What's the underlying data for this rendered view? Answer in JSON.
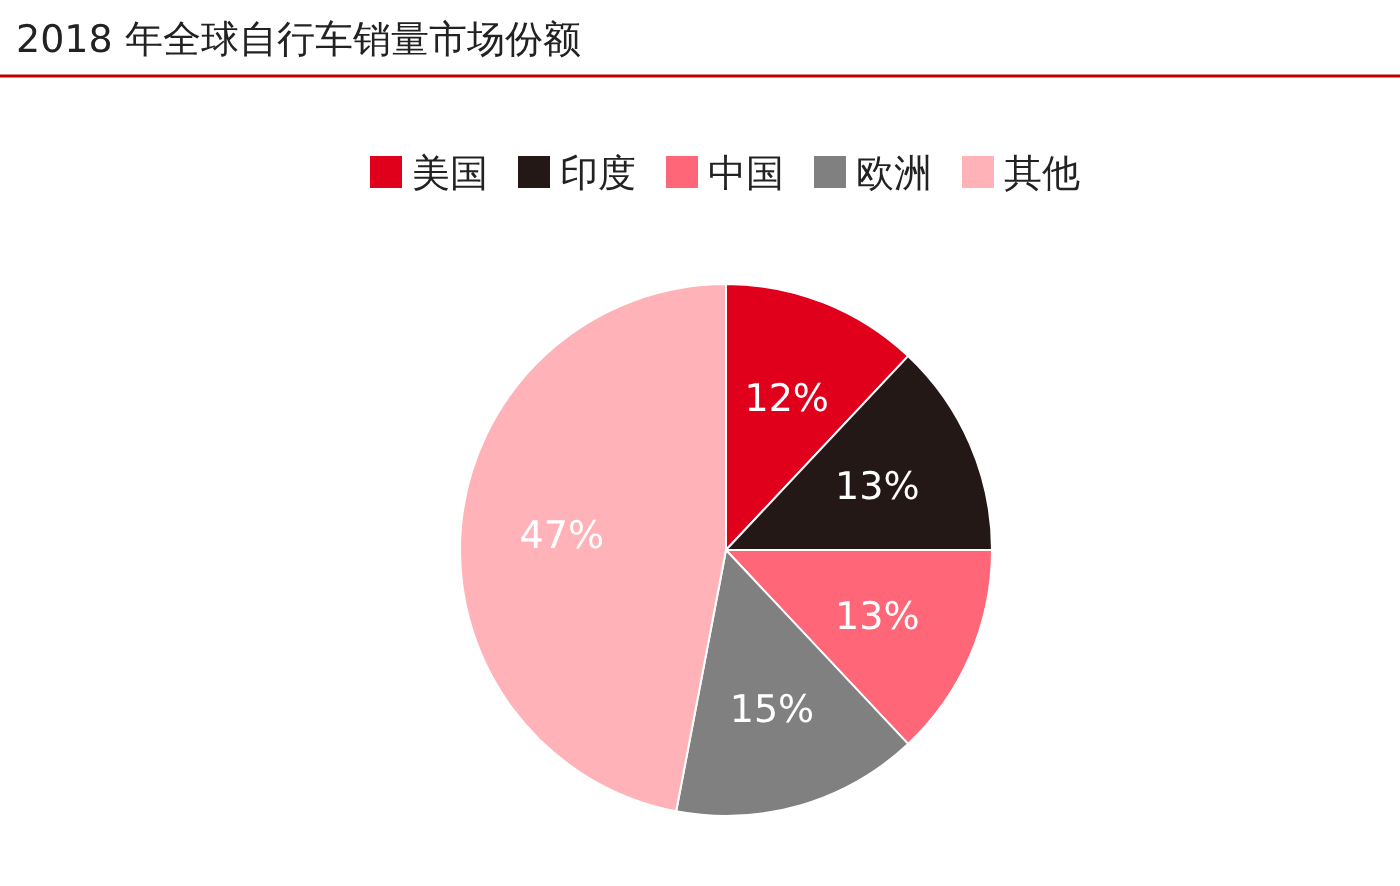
{
  "chart_data": {
    "type": "pie",
    "title": "2018 年全球自行车销量市场份额",
    "categories": [
      "美国",
      "印度",
      "中国",
      "欧洲",
      "其他"
    ],
    "values": [
      12,
      13,
      13,
      15,
      47
    ],
    "colors": [
      "#e0001b",
      "#231815",
      "#ff6677",
      "#808080",
      "#ffb3b8"
    ],
    "value_labels": [
      "12%",
      "13%",
      "13%",
      "15%",
      "47%"
    ],
    "legend": "top"
  }
}
